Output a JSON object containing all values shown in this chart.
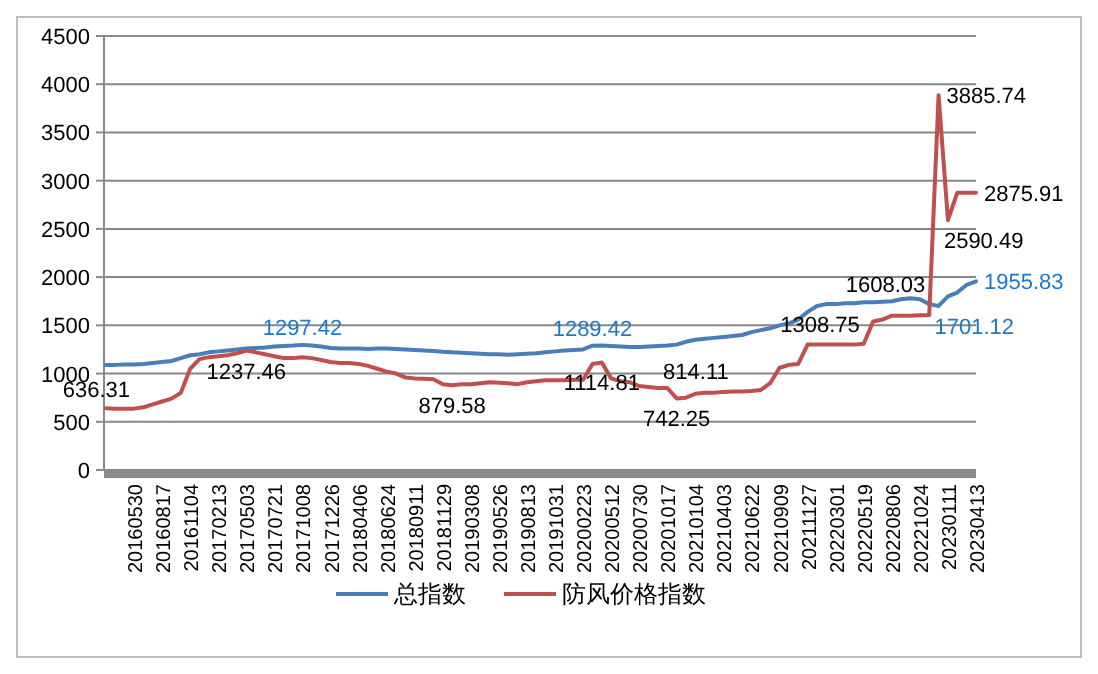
{
  "chart_data": {
    "type": "line",
    "categories": [
      null,
      null,
      null,
      "20160530",
      null,
      null,
      "20160817",
      null,
      null,
      "20161104",
      null,
      null,
      "20170213",
      null,
      null,
      "20170503",
      null,
      null,
      "20170721",
      null,
      null,
      "20171008",
      null,
      null,
      "20171226",
      null,
      null,
      "20180406",
      null,
      null,
      "20180624",
      null,
      null,
      "20180911",
      null,
      null,
      "20181129",
      null,
      null,
      "20190308",
      null,
      null,
      "20190526",
      null,
      null,
      "20190813",
      null,
      null,
      "20191031",
      null,
      null,
      "20200223",
      null,
      null,
      "20200512",
      null,
      null,
      "20200730",
      null,
      null,
      "20201017",
      null,
      null,
      "20210104",
      null,
      null,
      "20210403",
      null,
      null,
      "20210622",
      null,
      null,
      "20210909",
      null,
      null,
      "20211127",
      null,
      null,
      "20220301",
      null,
      null,
      "20220519",
      null,
      null,
      "20220806",
      null,
      null,
      "20221024",
      null,
      null,
      "20230111",
      null,
      null,
      "20230413"
    ],
    "series": [
      {
        "name": "总指数",
        "color": "#4a7ebb",
        "values": [
          1090,
          1090,
          1095,
          1095,
          1100,
          1110,
          1120,
          1130,
          1160,
          1190,
          1200,
          1220,
          1230,
          1240,
          1250,
          1260,
          1265,
          1270,
          1280,
          1285,
          1290,
          1297.42,
          1290,
          1280,
          1265,
          1260,
          1260,
          1260,
          1255,
          1260,
          1260,
          1255,
          1250,
          1245,
          1240,
          1235,
          1225,
          1220,
          1215,
          1210,
          1205,
          1200,
          1200,
          1195,
          1200,
          1205,
          1210,
          1220,
          1230,
          1240,
          1245,
          1250,
          1289.42,
          1290,
          1285,
          1280,
          1275,
          1275,
          1280,
          1285,
          1290,
          1300,
          1330,
          1350,
          1360,
          1370,
          1380,
          1390,
          1400,
          1430,
          1450,
          1470,
          1500,
          1520,
          1560,
          1640,
          1700,
          1720,
          1720,
          1730,
          1730,
          1740,
          1740,
          1745,
          1750,
          1770,
          1780,
          1770,
          1720,
          1701.12,
          1800,
          1840,
          1920,
          1955.83
        ],
        "value_labels": [
          null,
          null,
          null,
          null,
          null,
          null,
          null,
          null,
          null,
          null,
          null,
          null,
          null,
          null,
          null,
          null,
          null,
          null,
          null,
          null,
          null,
          "1297.42",
          null,
          null,
          null,
          null,
          null,
          null,
          null,
          null,
          null,
          null,
          null,
          null,
          null,
          null,
          null,
          null,
          null,
          null,
          null,
          null,
          null,
          null,
          null,
          null,
          null,
          null,
          null,
          null,
          null,
          null,
          "1289.42",
          null,
          null,
          null,
          null,
          null,
          null,
          null,
          null,
          null,
          null,
          null,
          null,
          null,
          null,
          null,
          null,
          null,
          null,
          null,
          null,
          null,
          null,
          null,
          null,
          null,
          null,
          null,
          null,
          null,
          null,
          null,
          null,
          null,
          null,
          null,
          null,
          "1701.12",
          null,
          null,
          null,
          "1955.83"
        ]
      },
      {
        "name": "防风价格指数",
        "color": "#c0504d",
        "values": [
          640,
          635,
          635,
          636.31,
          650,
          680,
          710,
          740,
          800,
          1050,
          1150,
          1170,
          1180,
          1190,
          1210,
          1237.46,
          1220,
          1200,
          1180,
          1160,
          1160,
          1170,
          1160,
          1140,
          1120,
          1110,
          1110,
          1100,
          1080,
          1050,
          1020,
          1000,
          960,
          950,
          945,
          940,
          890,
          879.58,
          890,
          890,
          900,
          910,
          905,
          900,
          890,
          910,
          920,
          930,
          930,
          930,
          935,
          935,
          1100,
          1114.81,
          950,
          920,
          910,
          870,
          860,
          850,
          850,
          742.25,
          750,
          790,
          800,
          800,
          810,
          814.11,
          815,
          820,
          830,
          900,
          1060,
          1090,
          1100,
          1300,
          1300,
          1300,
          1300,
          1300,
          1300,
          1308.75,
          1540,
          1560,
          1600,
          1600,
          1600,
          1605,
          1608.03,
          3885.74,
          2590.49,
          2875.91,
          2875.91,
          2875.91
        ],
        "value_labels": [
          null,
          null,
          null,
          "636.31",
          null,
          null,
          null,
          null,
          null,
          null,
          null,
          null,
          null,
          null,
          null,
          "1237.46",
          null,
          null,
          null,
          null,
          null,
          null,
          null,
          null,
          null,
          null,
          null,
          null,
          null,
          null,
          null,
          null,
          null,
          null,
          null,
          null,
          null,
          "879.58",
          null,
          null,
          null,
          null,
          null,
          null,
          null,
          null,
          null,
          null,
          null,
          null,
          null,
          null,
          null,
          "1114.81",
          null,
          null,
          null,
          null,
          null,
          null,
          null,
          "742.25",
          null,
          null,
          null,
          null,
          null,
          "814.11",
          null,
          null,
          null,
          null,
          null,
          null,
          null,
          null,
          null,
          null,
          null,
          null,
          null,
          "1308.75",
          null,
          null,
          null,
          null,
          null,
          null,
          "1608.03",
          "3885.74",
          "2590.49",
          null,
          null,
          "2875.91"
        ]
      }
    ],
    "ylim": [
      0,
      4500
    ],
    "yticks": [
      0,
      500,
      1000,
      1500,
      2000,
      2500,
      3000,
      3500,
      4000,
      4500
    ],
    "grid": "y",
    "legend": "bottom",
    "marker": "none",
    "line_style": "solid"
  }
}
